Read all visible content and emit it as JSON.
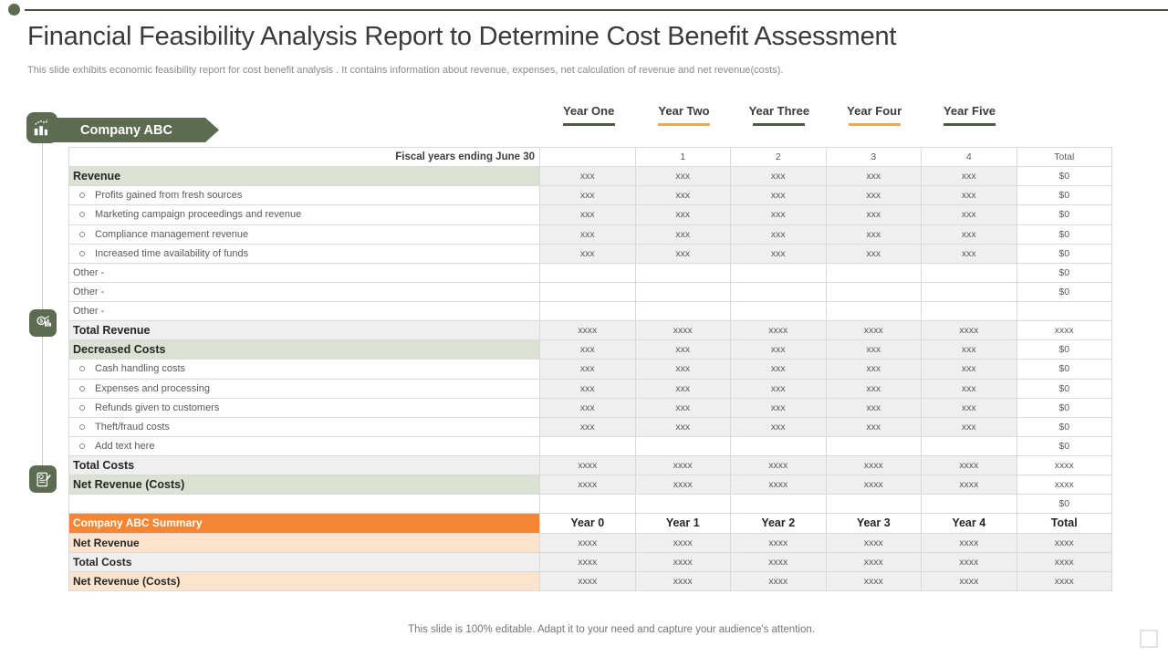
{
  "slide": {
    "title": "Financial Feasibility Analysis Report to Determine Cost Benefit Assessment",
    "subtitle": "This slide exhibits economic feasibility report for cost benefit analysis . It contains information about revenue, expenses, net calculation of revenue and net revenue(costs).",
    "footer": "This slide is 100% editable. Adapt it to your need and capture your audience's attention."
  },
  "banner": {
    "label": "Company ABC",
    "icon": "bar-chart-growth-icon"
  },
  "side_icons": [
    "finance-analytics-icon",
    "report-edit-icon"
  ],
  "year_headers": [
    {
      "label": "Year One",
      "underline_color": "#4e5a44"
    },
    {
      "label": "Year Two",
      "underline_color": "#eba954"
    },
    {
      "label": "Year Three",
      "underline_color": "#4e5a44"
    },
    {
      "label": "Year Four",
      "underline_color": "#eba954"
    },
    {
      "label": "Year Five",
      "underline_color": "#4e5a44"
    }
  ],
  "table": {
    "rows": [
      {
        "label": "Fiscal years ending June 30",
        "style": "header",
        "cells": [
          "",
          "1",
          "2",
          "3",
          "4",
          "Total"
        ]
      },
      {
        "label": "Revenue",
        "style": "section",
        "cells": [
          "xxx",
          "xxx",
          "xxx",
          "xxx",
          "xxx",
          "$0"
        ]
      },
      {
        "label": "Profits gained from fresh sources",
        "style": "item",
        "cells": [
          "xxx",
          "xxx",
          "xxx",
          "xxx",
          "xxx",
          "$0"
        ]
      },
      {
        "label": "Marketing campaign proceedings and revenue",
        "style": "item",
        "cells": [
          "xxx",
          "xxx",
          "xxx",
          "xxx",
          "xxx",
          "$0"
        ]
      },
      {
        "label": "Compliance management revenue",
        "style": "item",
        "cells": [
          "xxx",
          "xxx",
          "xxx",
          "xxx",
          "xxx",
          "$0"
        ]
      },
      {
        "label": "Increased time availability of funds",
        "style": "item",
        "cells": [
          "xxx",
          "xxx",
          "xxx",
          "xxx",
          "xxx",
          "$0"
        ]
      },
      {
        "label": "Other -",
        "style": "other",
        "cells": [
          "",
          "",
          "",
          "",
          "",
          "$0"
        ]
      },
      {
        "label": "Other -",
        "style": "other",
        "cells": [
          "",
          "",
          "",
          "",
          "",
          "$0"
        ]
      },
      {
        "label": "Other -",
        "style": "other",
        "cells": [
          "",
          "",
          "",
          "",
          "",
          ""
        ]
      },
      {
        "label": "Total Revenue",
        "style": "total",
        "cells": [
          "xxxx",
          "xxxx",
          "xxxx",
          "xxxx",
          "xxxx",
          "xxxx"
        ]
      },
      {
        "label": "Decreased Costs",
        "style": "section",
        "cells": [
          "xxx",
          "xxx",
          "xxx",
          "xxx",
          "xxx",
          "$0"
        ]
      },
      {
        "label": "Cash handling costs",
        "style": "item",
        "cells": [
          "xxx",
          "xxx",
          "xxx",
          "xxx",
          "xxx",
          "$0"
        ]
      },
      {
        "label": "Expenses and processing",
        "style": "item",
        "cells": [
          "xxx",
          "xxx",
          "xxx",
          "xxx",
          "xxx",
          "$0"
        ]
      },
      {
        "label": "Refunds given to customers",
        "style": "item",
        "cells": [
          "xxx",
          "xxx",
          "xxx",
          "xxx",
          "xxx",
          "$0"
        ]
      },
      {
        "label": "Theft/fraud costs",
        "style": "item",
        "cells": [
          "xxx",
          "xxx",
          "xxx",
          "xxx",
          "xxx",
          "$0"
        ]
      },
      {
        "label": "Add text here",
        "style": "item",
        "cells": [
          "",
          "",
          "",
          "",
          "",
          "$0"
        ]
      },
      {
        "label": "Total Costs",
        "style": "total",
        "cells": [
          "xxxx",
          "xxxx",
          "xxxx",
          "xxxx",
          "xxxx",
          "xxxx"
        ]
      },
      {
        "label": "Net Revenue  (Costs)",
        "style": "section",
        "cells": [
          "xxxx",
          "xxxx",
          "xxxx",
          "xxxx",
          "xxxx",
          "xxxx"
        ]
      },
      {
        "label": "",
        "style": "blank",
        "cells": [
          "",
          "",
          "",
          "",
          "",
          "$0"
        ]
      },
      {
        "label": "Company ABC Summary",
        "style": "summary-header",
        "cells": [
          "Year 0",
          "Year 1",
          "Year 2",
          "Year 3",
          "Year 4",
          "Total"
        ]
      },
      {
        "label": "Net Revenue",
        "style": "summary-peach",
        "cells": [
          "xxxx",
          "xxxx",
          "xxxx",
          "xxxx",
          "xxxx",
          "xxxx"
        ]
      },
      {
        "label": "Total Costs",
        "style": "summary-gray",
        "cells": [
          "xxxx",
          "xxxx",
          "xxxx",
          "xxxx",
          "xxxx",
          "xxxx"
        ]
      },
      {
        "label": "Net Revenue (Costs)",
        "style": "summary-peach",
        "cells": [
          "xxxx",
          "xxxx",
          "xxxx",
          "xxxx",
          "xxxx",
          "xxxx"
        ]
      }
    ]
  },
  "colors": {
    "olive_green": "#5d6b51",
    "underline_dark": "#4e5a44",
    "underline_orange": "#eba954",
    "section_green_bg": "#dbe2d3",
    "summary_orange": "#f58634",
    "summary_peach": "#fce4cc",
    "cell_gray": "#efefef",
    "border_gray": "#d9d9d9"
  }
}
